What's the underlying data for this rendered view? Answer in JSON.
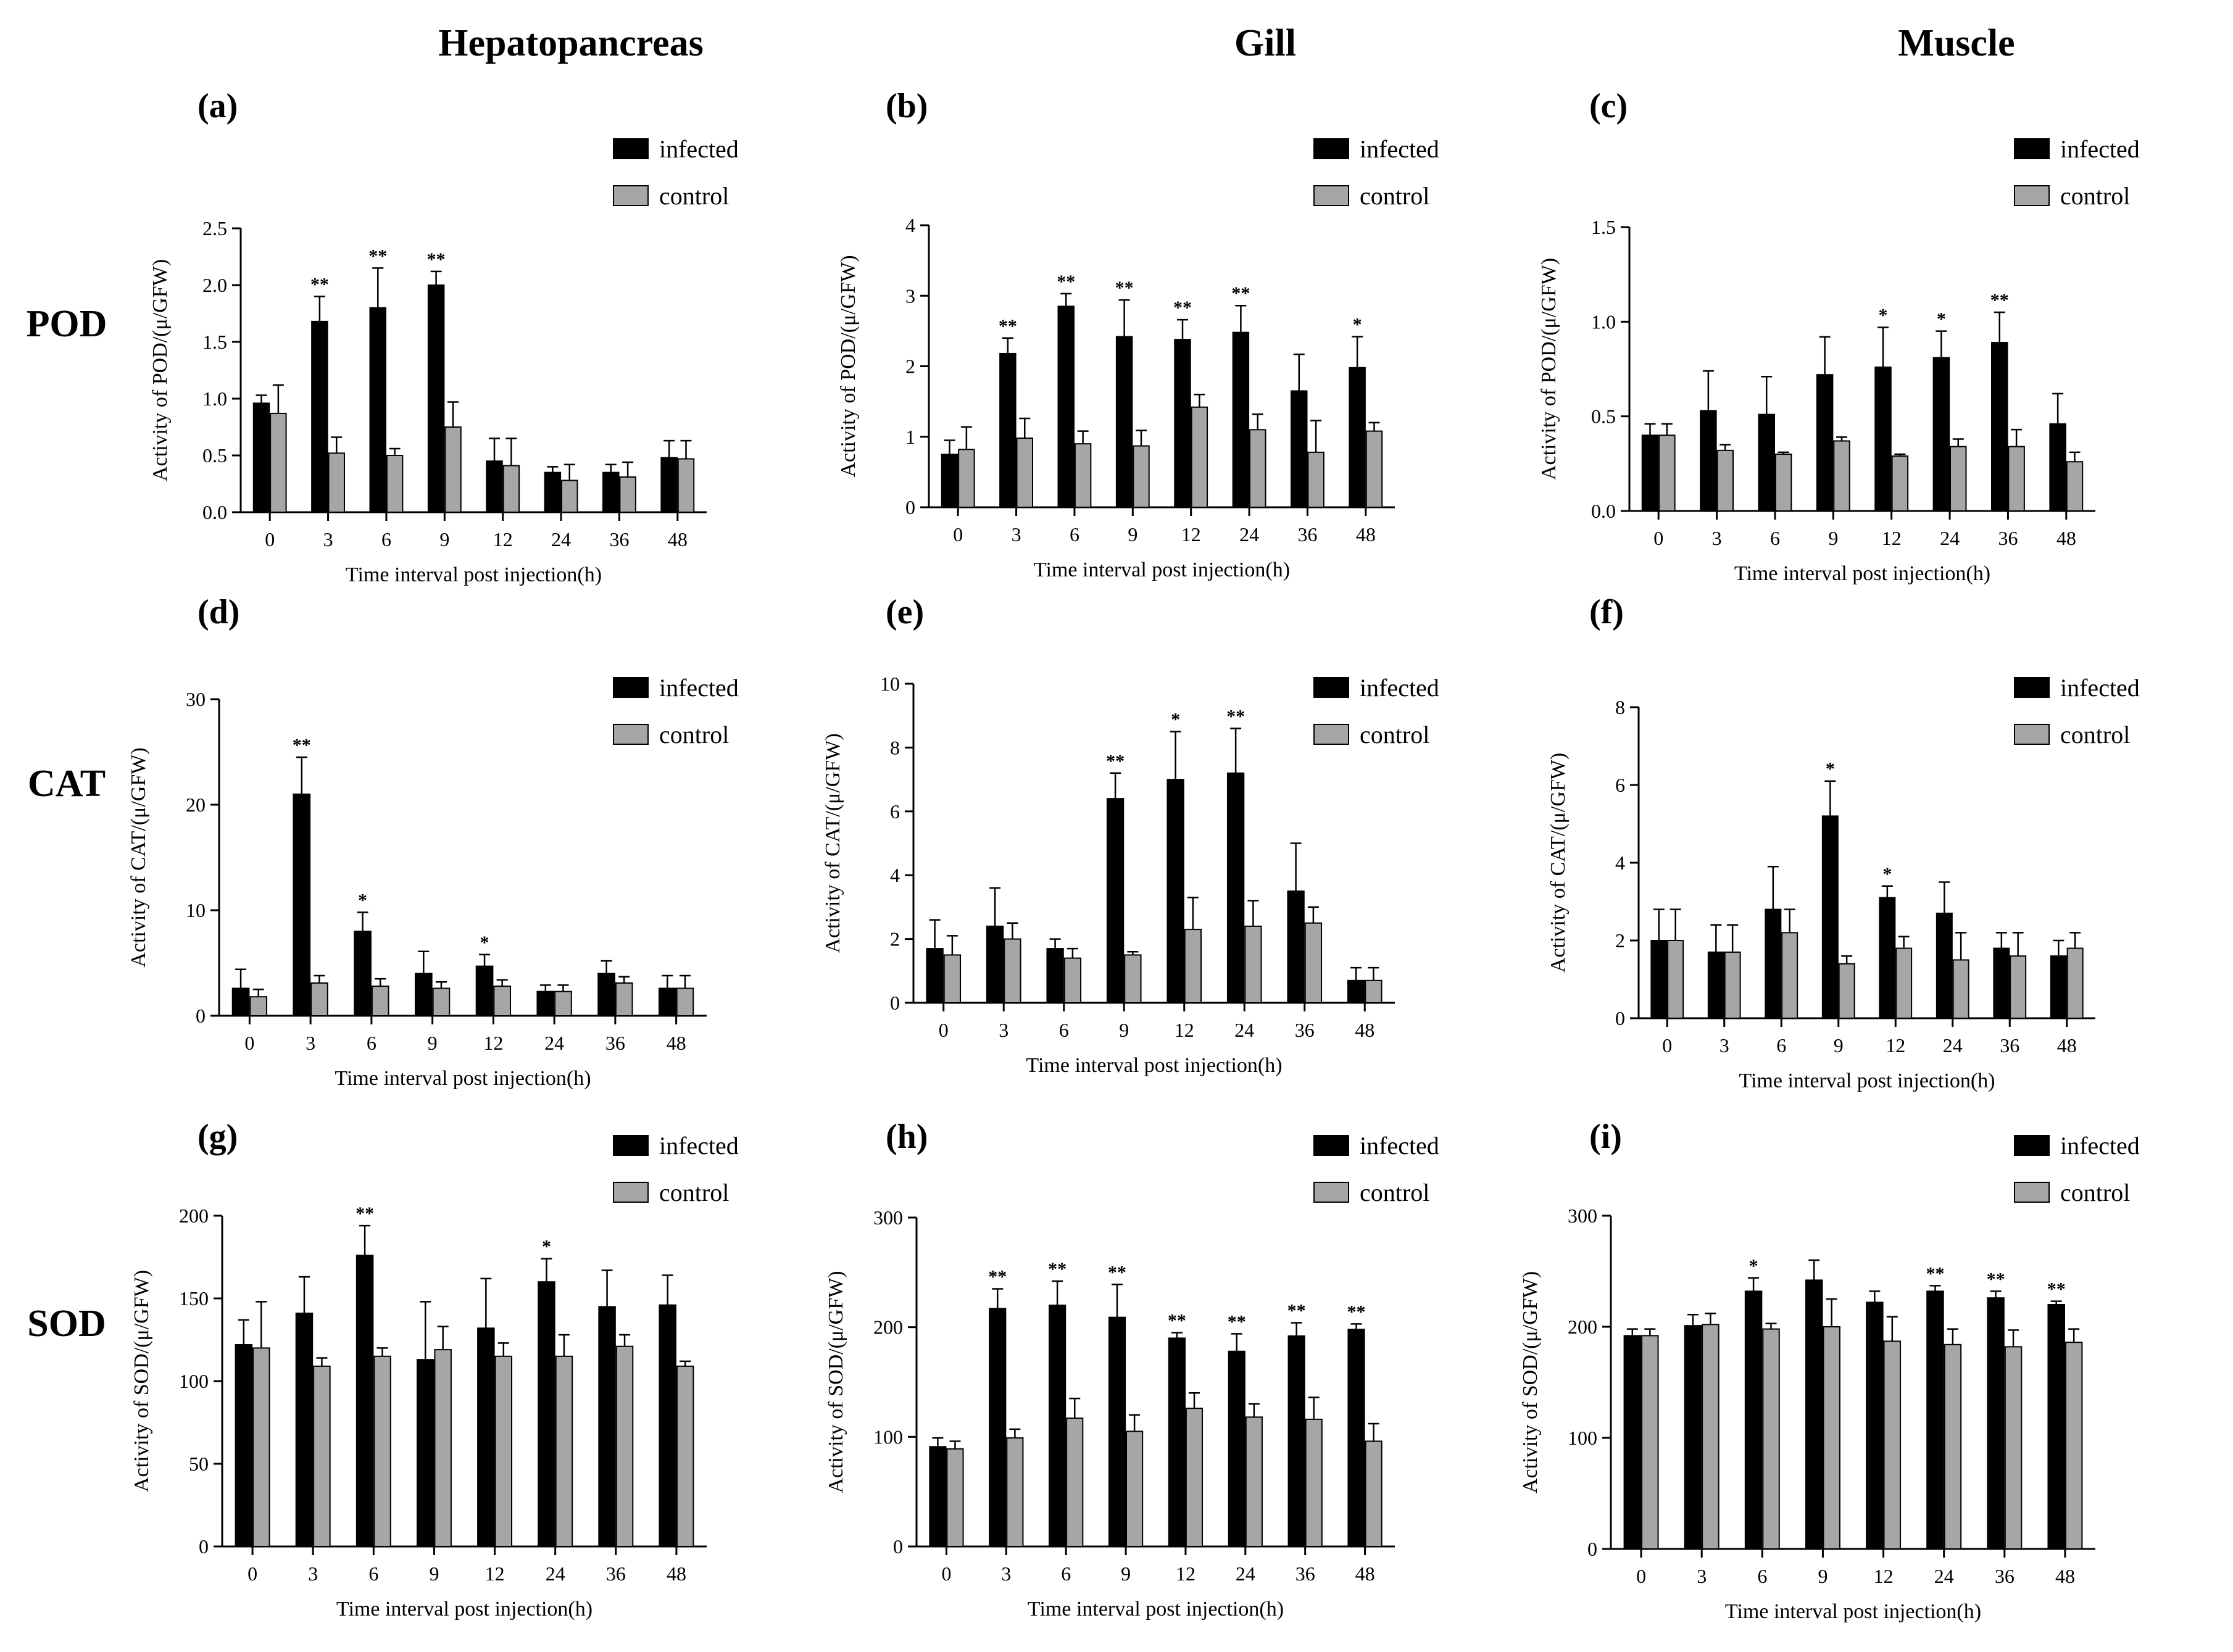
{
  "figure": {
    "column_titles": [
      "Hepatopancreas",
      "Gill",
      "Muscle"
    ],
    "row_titles": [
      "POD",
      "CAT",
      "SOD"
    ]
  },
  "chart_data": [
    {
      "id": "a",
      "label": "(a)",
      "type": "bar",
      "categories": [
        "0",
        "3",
        "6",
        "9",
        "12",
        "24",
        "36",
        "48"
      ],
      "ylim": [
        0,
        2.5
      ],
      "yticks": [
        "0.0",
        "0.5",
        "1.0",
        "1.5",
        "2.0",
        "2.5"
      ],
      "ylabel": "Activity of POD/(μ/GFW)",
      "xlabel": "Time interval post injection(h)",
      "legend": [
        "infected",
        "control"
      ],
      "series": [
        {
          "name": "infected",
          "color": "#000000",
          "values": [
            0.96,
            1.68,
            1.8,
            2.0,
            0.45,
            0.35,
            0.35,
            0.48
          ],
          "errors": [
            0.07,
            0.22,
            0.35,
            0.12,
            0.2,
            0.05,
            0.07,
            0.15
          ]
        },
        {
          "name": "control",
          "color": "#a6a6a6",
          "values": [
            0.87,
            0.52,
            0.5,
            0.75,
            0.41,
            0.28,
            0.31,
            0.47
          ],
          "errors": [
            0.25,
            0.14,
            0.06,
            0.22,
            0.24,
            0.14,
            0.13,
            0.16
          ]
        }
      ],
      "sig": [
        "",
        "**",
        "**",
        "**",
        "",
        "",
        "",
        ""
      ]
    },
    {
      "id": "b",
      "label": "(b)",
      "type": "bar",
      "categories": [
        "0",
        "3",
        "6",
        "9",
        "12",
        "24",
        "36",
        "48"
      ],
      "ylim": [
        0,
        4
      ],
      "yticks": [
        "0",
        "1",
        "2",
        "3",
        "4"
      ],
      "ylabel": "Activity of POD/(μ/GFW)",
      "xlabel": "Time interval post injection(h)",
      "legend": [
        "infected",
        "control"
      ],
      "series": [
        {
          "name": "infected",
          "color": "#000000",
          "values": [
            0.75,
            2.18,
            2.85,
            2.42,
            2.38,
            2.48,
            1.65,
            1.98
          ],
          "errors": [
            0.2,
            0.22,
            0.18,
            0.52,
            0.28,
            0.38,
            0.52,
            0.44
          ]
        },
        {
          "name": "control",
          "color": "#a6a6a6",
          "values": [
            0.82,
            0.98,
            0.9,
            0.87,
            1.42,
            1.1,
            0.78,
            1.08
          ],
          "errors": [
            0.32,
            0.28,
            0.18,
            0.22,
            0.18,
            0.22,
            0.45,
            0.12
          ]
        }
      ],
      "sig": [
        "",
        "**",
        "**",
        "**",
        "**",
        "**",
        "",
        "*"
      ]
    },
    {
      "id": "c",
      "label": "(c)",
      "type": "bar",
      "categories": [
        "0",
        "3",
        "6",
        "9",
        "12",
        "24",
        "36",
        "48"
      ],
      "ylim": [
        0,
        1.5
      ],
      "yticks": [
        "0.0",
        "0.5",
        "1.0",
        "1.5"
      ],
      "ylabel": "Activity of POD/(μ/GFW)",
      "xlabel": "Time interval post injection(h)",
      "legend": [
        "infected",
        "control"
      ],
      "series": [
        {
          "name": "infected",
          "color": "#000000",
          "values": [
            0.4,
            0.53,
            0.51,
            0.72,
            0.76,
            0.81,
            0.89,
            0.46
          ],
          "errors": [
            0.06,
            0.21,
            0.2,
            0.2,
            0.21,
            0.14,
            0.16,
            0.16
          ]
        },
        {
          "name": "control",
          "color": "#a6a6a6",
          "values": [
            0.4,
            0.32,
            0.3,
            0.37,
            0.29,
            0.34,
            0.34,
            0.26
          ],
          "errors": [
            0.06,
            0.03,
            0.01,
            0.02,
            0.01,
            0.04,
            0.09,
            0.05
          ]
        }
      ],
      "sig": [
        "",
        "",
        "",
        "",
        "*",
        "*",
        "**",
        ""
      ]
    },
    {
      "id": "d",
      "label": "(d)",
      "type": "bar",
      "categories": [
        "0",
        "3",
        "6",
        "9",
        "12",
        "24",
        "36",
        "48"
      ],
      "ylim": [
        0,
        30
      ],
      "yticks": [
        "0",
        "10",
        "20",
        "30"
      ],
      "ylabel": "Activity of CAT/(μ/GFW)",
      "xlabel": "Time interval post injection(h)",
      "legend": [
        "infected",
        "control"
      ],
      "series": [
        {
          "name": "infected",
          "color": "#000000",
          "values": [
            2.6,
            21.0,
            8.0,
            4.0,
            4.7,
            2.3,
            4.0,
            2.6
          ],
          "errors": [
            1.8,
            3.5,
            1.8,
            2.1,
            1.1,
            0.6,
            1.2,
            1.2
          ]
        },
        {
          "name": "control",
          "color": "#a6a6a6",
          "values": [
            1.8,
            3.1,
            2.8,
            2.6,
            2.8,
            2.3,
            3.1,
            2.6
          ],
          "errors": [
            0.7,
            0.7,
            0.7,
            0.6,
            0.6,
            0.6,
            0.6,
            1.2
          ]
        }
      ],
      "sig": [
        "",
        "**",
        "*",
        "",
        "*",
        "",
        "",
        ""
      ]
    },
    {
      "id": "e",
      "label": "(e)",
      "type": "bar",
      "categories": [
        "0",
        "3",
        "6",
        "9",
        "12",
        "24",
        "36",
        "48"
      ],
      "ylim": [
        0,
        10
      ],
      "yticks": [
        "0",
        "2",
        "4",
        "6",
        "8",
        "10"
      ],
      "ylabel": "Activity of CAT/(μ/GFW)",
      "xlabel": "Time interval post injection(h)",
      "legend": [
        "infected",
        "control"
      ],
      "series": [
        {
          "name": "infected",
          "color": "#000000",
          "values": [
            1.7,
            2.4,
            1.7,
            6.4,
            7.0,
            7.2,
            3.5,
            0.7
          ],
          "errors": [
            0.9,
            1.2,
            0.3,
            0.8,
            1.5,
            1.4,
            1.5,
            0.4
          ]
        },
        {
          "name": "control",
          "color": "#a6a6a6",
          "values": [
            1.5,
            2.0,
            1.4,
            1.5,
            2.3,
            2.4,
            2.5,
            0.7
          ],
          "errors": [
            0.6,
            0.5,
            0.3,
            0.1,
            1.0,
            0.8,
            0.5,
            0.4
          ]
        }
      ],
      "sig": [
        "",
        "",
        "",
        "**",
        "*",
        "**",
        "",
        ""
      ]
    },
    {
      "id": "f",
      "label": "(f)",
      "type": "bar",
      "categories": [
        "0",
        "3",
        "6",
        "9",
        "12",
        "24",
        "36",
        "48"
      ],
      "ylim": [
        0,
        8
      ],
      "yticks": [
        "0",
        "2",
        "4",
        "6",
        "8"
      ],
      "ylabel": "Activity of CAT/(μ/GFW)",
      "xlabel": "Time interval post injection(h)",
      "legend": [
        "infected",
        "control"
      ],
      "series": [
        {
          "name": "infected",
          "color": "#000000",
          "values": [
            2.0,
            1.7,
            2.8,
            5.2,
            3.1,
            2.7,
            1.8,
            1.6
          ],
          "errors": [
            0.8,
            0.7,
            1.1,
            0.9,
            0.3,
            0.8,
            0.4,
            0.4
          ]
        },
        {
          "name": "control",
          "color": "#a6a6a6",
          "values": [
            2.0,
            1.7,
            2.2,
            1.4,
            1.8,
            1.5,
            1.6,
            1.8
          ],
          "errors": [
            0.8,
            0.7,
            0.6,
            0.2,
            0.3,
            0.7,
            0.6,
            0.4
          ]
        }
      ],
      "sig": [
        "",
        "",
        "",
        "*",
        "*",
        "",
        "",
        ""
      ]
    },
    {
      "id": "g",
      "label": "(g)",
      "type": "bar",
      "categories": [
        "0",
        "3",
        "6",
        "9",
        "12",
        "24",
        "36",
        "48"
      ],
      "ylim": [
        0,
        200
      ],
      "yticks": [
        "0",
        "50",
        "100",
        "150",
        "200"
      ],
      "ylabel": "Activity of SOD/(μ/GFW)",
      "xlabel": "Time interval post injection(h)",
      "legend": [
        "infected",
        "control"
      ],
      "series": [
        {
          "name": "infected",
          "color": "#000000",
          "values": [
            122,
            141,
            176,
            113,
            132,
            160,
            145,
            146
          ],
          "errors": [
            15,
            22,
            18,
            35,
            30,
            14,
            22,
            18
          ]
        },
        {
          "name": "control",
          "color": "#a6a6a6",
          "values": [
            120,
            109,
            115,
            119,
            115,
            115,
            121,
            109
          ],
          "errors": [
            28,
            5,
            5,
            14,
            8,
            13,
            7,
            3
          ]
        }
      ],
      "sig": [
        "",
        "",
        "**",
        "",
        "",
        "*",
        "",
        ""
      ]
    },
    {
      "id": "h",
      "label": "(h)",
      "type": "bar",
      "categories": [
        "0",
        "3",
        "6",
        "9",
        "12",
        "24",
        "36",
        "48"
      ],
      "ylim": [
        0,
        300
      ],
      "yticks": [
        "0",
        "100",
        "200",
        "300"
      ],
      "ylabel": "Activity of SOD/(μ/GFW)",
      "xlabel": "Time interval post injection(h)",
      "legend": [
        "infected",
        "control"
      ],
      "series": [
        {
          "name": "infected",
          "color": "#000000",
          "values": [
            91,
            217,
            220,
            209,
            190,
            178,
            192,
            198
          ],
          "errors": [
            8,
            18,
            22,
            30,
            5,
            16,
            12,
            5
          ]
        },
        {
          "name": "control",
          "color": "#a6a6a6",
          "values": [
            89,
            99,
            117,
            105,
            126,
            118,
            116,
            96
          ],
          "errors": [
            7,
            8,
            18,
            15,
            14,
            12,
            20,
            16
          ]
        }
      ],
      "sig": [
        "",
        "**",
        "**",
        "**",
        "**",
        "**",
        "**",
        "**"
      ]
    },
    {
      "id": "i",
      "label": "(i)",
      "type": "bar",
      "categories": [
        "0",
        "3",
        "6",
        "9",
        "12",
        "24",
        "36",
        "48"
      ],
      "ylim": [
        0,
        300
      ],
      "yticks": [
        "0",
        "100",
        "200",
        "300"
      ],
      "ylabel": "Activity of SOD/(μ/GFW)",
      "xlabel": "Time interval post injection(h)",
      "legend": [
        "infected",
        "control"
      ],
      "series": [
        {
          "name": "infected",
          "color": "#000000",
          "values": [
            192,
            201,
            232,
            242,
            222,
            232,
            226,
            220
          ],
          "errors": [
            6,
            10,
            12,
            18,
            10,
            5,
            6,
            3
          ]
        },
        {
          "name": "control",
          "color": "#a6a6a6",
          "values": [
            192,
            202,
            198,
            200,
            187,
            184,
            182,
            186
          ],
          "errors": [
            6,
            10,
            5,
            25,
            22,
            14,
            15,
            12
          ]
        }
      ],
      "sig": [
        "",
        "",
        "*",
        "",
        "",
        "**",
        "**",
        "**"
      ]
    }
  ]
}
